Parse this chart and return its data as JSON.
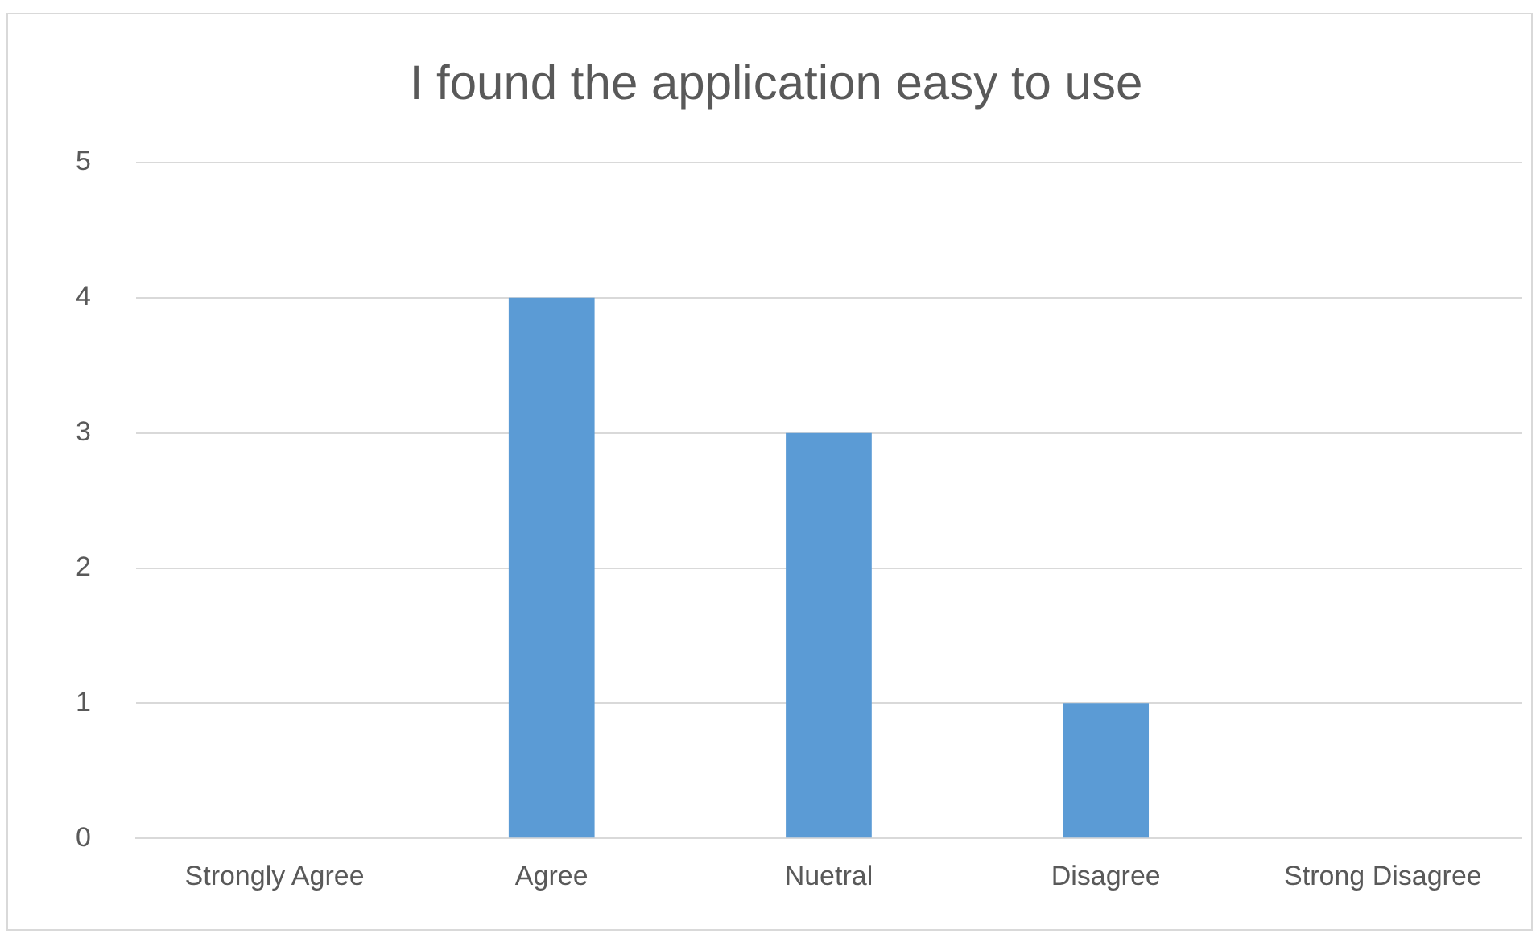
{
  "chart_data": {
    "type": "bar",
    "title": "I found the application easy to use",
    "categories": [
      "Strongly Agree",
      "Agree",
      "Nuetral",
      "Disagree",
      "Strong Disagree"
    ],
    "values": [
      0,
      4,
      3,
      1,
      0
    ],
    "color": "#5b9bd5",
    "ylim": [
      0,
      5
    ],
    "yticks": [
      0,
      1,
      2,
      3,
      4,
      5
    ],
    "grid": "y",
    "legend": false
  }
}
